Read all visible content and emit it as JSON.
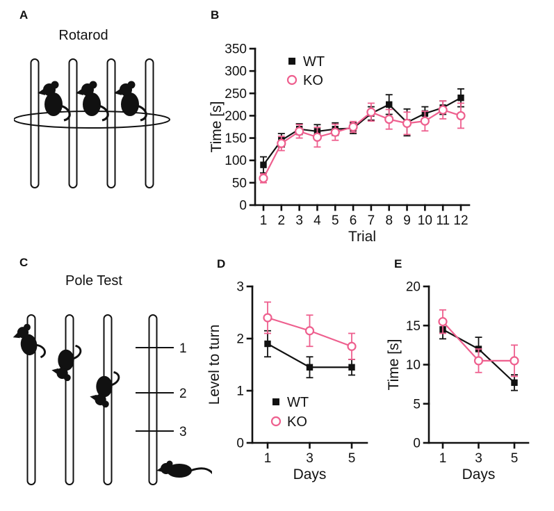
{
  "figure": {
    "background": "#ffffff",
    "ink_color": "#111111",
    "wt_color": "#111111",
    "ko_color": "#ee5f8e"
  },
  "panels": {
    "A": {
      "label": "A",
      "title": "Rotarod"
    },
    "B": {
      "label": "B"
    },
    "C": {
      "label": "C",
      "title": "Pole Test",
      "marks": [
        "1",
        "2",
        "3"
      ]
    },
    "D": {
      "label": "D"
    },
    "E": {
      "label": "E"
    }
  },
  "chart_data": [
    {
      "id": "B",
      "type": "line",
      "title": "",
      "xlabel": "Trial",
      "ylabel": "Time [s]",
      "x": [
        1,
        2,
        3,
        4,
        5,
        6,
        7,
        8,
        9,
        10,
        11,
        12
      ],
      "ylim": [
        0,
        350
      ],
      "yticks": [
        0,
        50,
        100,
        150,
        200,
        250,
        300,
        350
      ],
      "grid": false,
      "legend_position": "top-left",
      "series": [
        {
          "name": "WT",
          "marker": "square-filled",
          "color": "#111111",
          "values": [
            90,
            145,
            170,
            165,
            170,
            172,
            205,
            225,
            185,
            205,
            218,
            240
          ],
          "errors": [
            18,
            15,
            12,
            15,
            14,
            12,
            15,
            22,
            30,
            15,
            15,
            20
          ]
        },
        {
          "name": "KO",
          "marker": "circle-open",
          "color": "#ee5f8e",
          "values": [
            60,
            138,
            165,
            152,
            163,
            175,
            208,
            192,
            183,
            188,
            213,
            200
          ],
          "errors": [
            10,
            16,
            15,
            22,
            18,
            12,
            20,
            22,
            25,
            22,
            20,
            28
          ]
        }
      ]
    },
    {
      "id": "D",
      "type": "line",
      "title": "",
      "xlabel": "Days",
      "ylabel": "Level to turn",
      "x": [
        1,
        3,
        5
      ],
      "ylim": [
        0,
        3
      ],
      "yticks": [
        0,
        1,
        2,
        3
      ],
      "grid": false,
      "legend_position": "bottom-left",
      "series": [
        {
          "name": "WT",
          "marker": "square-filled",
          "color": "#111111",
          "values": [
            1.9,
            1.45,
            1.45
          ],
          "errors": [
            0.25,
            0.2,
            0.15
          ]
        },
        {
          "name": "KO",
          "marker": "circle-open",
          "color": "#ee5f8e",
          "values": [
            2.4,
            2.15,
            1.85
          ],
          "errors": [
            0.3,
            0.3,
            0.25
          ]
        }
      ]
    },
    {
      "id": "E",
      "type": "line",
      "title": "",
      "xlabel": "Days",
      "ylabel": "Time [s]",
      "x": [
        1,
        3,
        5
      ],
      "ylim": [
        0,
        20
      ],
      "yticks": [
        0,
        5,
        10,
        15,
        20
      ],
      "grid": false,
      "legend_position": "none",
      "series": [
        {
          "name": "WT",
          "marker": "square-filled",
          "color": "#111111",
          "values": [
            14.5,
            12,
            7.7
          ],
          "errors": [
            1.2,
            1.5,
            1.0
          ]
        },
        {
          "name": "KO",
          "marker": "circle-open",
          "color": "#ee5f8e",
          "values": [
            15.5,
            10.5,
            10.5
          ],
          "errors": [
            1.5,
            1.5,
            2.0
          ]
        }
      ]
    }
  ]
}
